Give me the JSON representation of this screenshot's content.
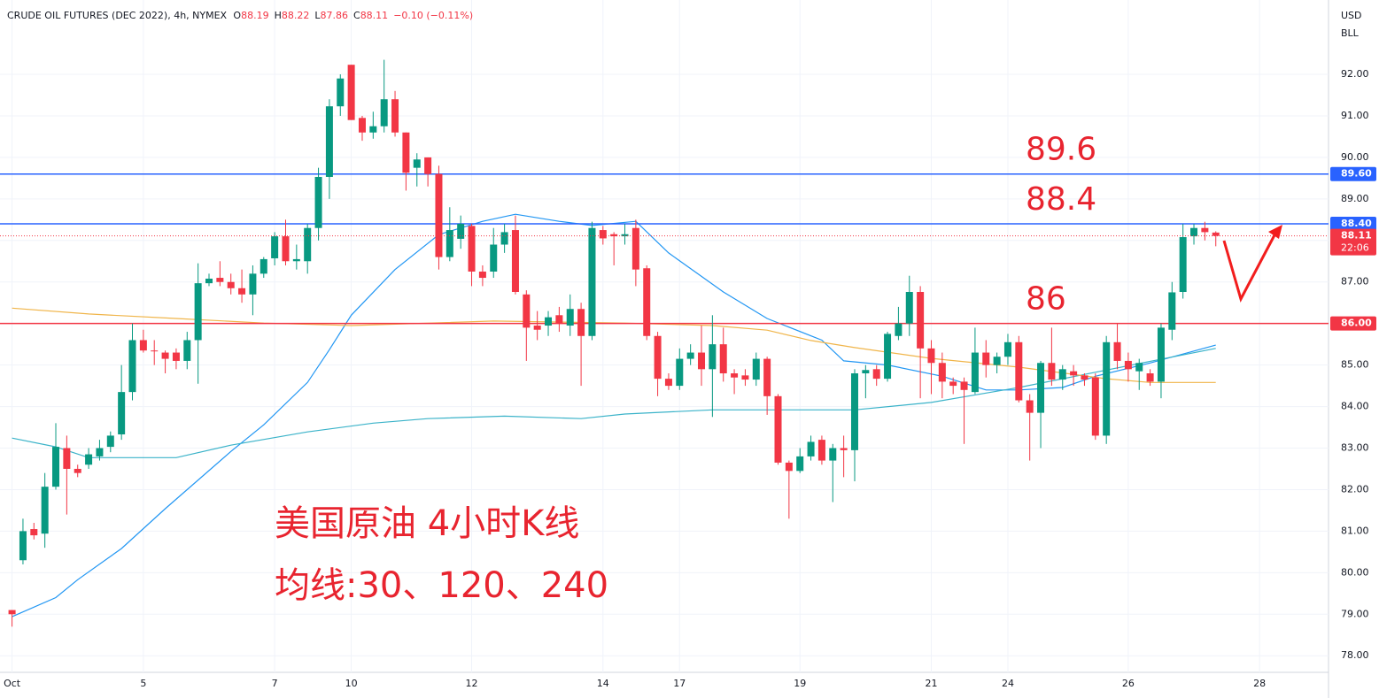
{
  "header": {
    "symbol": "CRUDE OIL FUTURES (DEC 2022), 4h, NYMEX",
    "ohlc": [
      {
        "key": "O",
        "value": "88.19"
      },
      {
        "key": "H",
        "value": "88.22"
      },
      {
        "key": "L",
        "value": "87.86"
      },
      {
        "key": "C",
        "value": "88.11"
      }
    ],
    "change": "−0.10 (−0.11%)",
    "currency": "USD",
    "unit": "BLL"
  },
  "chart_data": {
    "type": "candlestick",
    "up_color": "#089981",
    "down_color": "#f23645",
    "grid": true,
    "x": [
      0,
      1,
      2,
      3,
      4,
      5,
      6,
      7,
      8,
      9,
      10,
      11,
      12,
      13,
      14,
      15,
      16,
      17,
      18,
      19,
      20,
      21,
      22,
      23,
      24,
      25,
      26,
      27,
      28,
      29,
      30,
      31,
      32,
      33,
      34,
      35,
      36,
      37,
      38,
      39,
      40,
      41,
      42,
      43,
      44,
      45,
      46,
      47,
      48,
      49,
      50,
      51,
      52,
      53,
      54,
      55,
      56,
      57,
      58,
      59,
      60,
      61,
      62,
      63,
      64,
      65,
      66,
      67,
      68,
      69,
      70,
      71,
      72,
      73,
      74,
      75,
      76,
      77,
      78,
      79,
      80,
      81,
      82,
      83,
      84,
      85,
      86,
      87,
      88,
      89,
      90,
      91,
      92,
      93,
      94,
      95,
      96,
      97,
      98,
      99,
      100,
      101,
      102,
      103,
      104,
      105,
      106,
      107,
      108,
      109,
      110
    ],
    "open": [
      79.1,
      80.3,
      81.05,
      80.94,
      82.07,
      83.0,
      82.5,
      82.6,
      82.8,
      83.03,
      83.33,
      84.35,
      85.6,
      85.35,
      85.3,
      85.3,
      85.1,
      85.6,
      86.97,
      87.1,
      87.0,
      86.85,
      86.7,
      87.2,
      87.57,
      88.1,
      87.5,
      87.5,
      88.3,
      89.53,
      91.23,
      92.23,
      90.95,
      90.6,
      90.75,
      91.4,
      90.6,
      89.75,
      90.0,
      89.6,
      87.6,
      88.04,
      88.35,
      87.25,
      87.25,
      87.9,
      88.25,
      86.7,
      85.95,
      85.95,
      86.2,
      85.95,
      86.35,
      85.7,
      88.25,
      88.15,
      88.1,
      88.3,
      87.33,
      85.7,
      84.67,
      84.5,
      85.15,
      85.3,
      84.9,
      85.5,
      84.8,
      84.75,
      84.65,
      85.15,
      84.25,
      82.65,
      82.45,
      82.8,
      83.2,
      82.7,
      83.0,
      82.95,
      84.8,
      84.9,
      84.67,
      85.7,
      86.0,
      86.76,
      85.4,
      85.05,
      84.6,
      84.6,
      84.35,
      85.3,
      85.0,
      85.2,
      85.55,
      84.15,
      83.85,
      85.05,
      84.65,
      84.85,
      84.75,
      84.7,
      83.3,
      85.55,
      85.1,
      84.85,
      84.8,
      84.6,
      85.85,
      86.76,
      88.1,
      88.3,
      88.19
    ],
    "high": [
      79.1,
      81.3,
      81.2,
      82.4,
      83.6,
      83.3,
      82.6,
      83.0,
      83.2,
      83.4,
      85.0,
      86.0,
      85.85,
      85.6,
      85.35,
      85.4,
      85.8,
      87.45,
      87.2,
      87.5,
      87.2,
      87.3,
      87.4,
      87.6,
      88.2,
      88.5,
      87.9,
      88.4,
      89.75,
      91.4,
      92.0,
      92.23,
      91.0,
      91.1,
      92.35,
      91.6,
      90.6,
      90.1,
      90.0,
      89.8,
      88.8,
      88.6,
      88.4,
      87.4,
      88.3,
      88.4,
      88.6,
      86.8,
      86.3,
      86.3,
      86.4,
      86.7,
      86.5,
      88.45,
      88.35,
      88.2,
      88.4,
      88.5,
      87.4,
      85.8,
      84.8,
      85.4,
      85.5,
      85.95,
      86.2,
      85.9,
      84.9,
      84.9,
      85.3,
      85.2,
      84.3,
      82.7,
      83.0,
      83.3,
      83.3,
      83.1,
      83.3,
      84.9,
      85.0,
      85.0,
      85.8,
      86.4,
      87.15,
      86.9,
      85.6,
      85.3,
      84.7,
      84.7,
      85.9,
      85.6,
      85.3,
      85.75,
      85.7,
      84.3,
      85.1,
      85.9,
      85.0,
      85.0,
      84.8,
      84.8,
      85.7,
      86.0,
      85.3,
      85.15,
      84.9,
      86.0,
      87.0,
      88.4,
      88.4,
      88.45,
      88.22
    ],
    "low": [
      78.7,
      80.2,
      80.8,
      80.6,
      82.0,
      81.4,
      82.3,
      82.5,
      82.7,
      82.9,
      83.2,
      84.15,
      85.3,
      85.0,
      84.8,
      84.9,
      84.9,
      84.55,
      86.9,
      86.9,
      86.7,
      86.5,
      86.2,
      87.1,
      87.4,
      87.4,
      87.3,
      87.2,
      88.0,
      89.0,
      91.0,
      90.9,
      90.4,
      90.45,
      90.6,
      90.5,
      89.2,
      89.3,
      89.3,
      87.3,
      87.5,
      87.8,
      86.9,
      86.9,
      87.1,
      87.7,
      86.7,
      85.1,
      85.6,
      85.7,
      85.8,
      85.7,
      84.5,
      85.6,
      87.9,
      87.4,
      87.9,
      86.9,
      85.6,
      84.25,
      84.4,
      84.4,
      85.0,
      84.5,
      83.75,
      84.6,
      84.3,
      84.5,
      84.5,
      83.8,
      82.6,
      81.3,
      82.4,
      82.7,
      82.6,
      81.7,
      82.3,
      82.2,
      84.2,
      84.5,
      84.6,
      85.6,
      85.7,
      84.2,
      84.3,
      84.2,
      84.3,
      83.1,
      84.3,
      84.7,
      84.8,
      85.0,
      84.1,
      82.7,
      83.0,
      84.5,
      84.4,
      84.5,
      84.5,
      83.2,
      83.1,
      84.9,
      84.6,
      84.4,
      84.5,
      84.2,
      85.6,
      86.6,
      87.9,
      88.0,
      87.86
    ],
    "close": [
      79.0,
      81.0,
      80.9,
      82.07,
      83.03,
      82.5,
      82.4,
      82.85,
      83.0,
      83.3,
      84.35,
      85.6,
      85.35,
      85.33,
      85.15,
      85.1,
      85.6,
      86.97,
      87.08,
      87.0,
      86.85,
      86.7,
      87.2,
      87.55,
      88.1,
      87.5,
      87.55,
      88.3,
      89.53,
      91.23,
      91.9,
      90.9,
      90.6,
      90.75,
      91.4,
      90.6,
      89.63,
      89.95,
      89.6,
      87.6,
      88.25,
      88.4,
      87.25,
      87.1,
      87.9,
      88.2,
      86.76,
      85.9,
      85.85,
      86.15,
      86.0,
      86.35,
      85.7,
      88.3,
      88.05,
      88.1,
      88.15,
      87.3,
      85.7,
      84.67,
      84.5,
      85.15,
      85.3,
      84.9,
      85.5,
      84.8,
      84.7,
      84.65,
      85.15,
      84.25,
      82.65,
      82.45,
      82.8,
      83.15,
      82.7,
      83.0,
      82.95,
      84.8,
      84.88,
      84.67,
      85.75,
      86.0,
      86.76,
      85.4,
      85.05,
      84.6,
      84.5,
      84.4,
      85.3,
      85.0,
      85.2,
      85.55,
      84.15,
      83.85,
      85.05,
      84.65,
      84.9,
      84.75,
      84.65,
      83.3,
      85.55,
      85.1,
      84.9,
      85.05,
      84.6,
      85.9,
      86.75,
      88.08,
      88.3,
      88.2,
      88.11
    ],
    "lines": [
      {
        "color": "#2196f3",
        "x": [
          0,
          4,
          6,
          10,
          14,
          20,
          23,
          27,
          29,
          31,
          35,
          39,
          43,
          46,
          50,
          53,
          57,
          60,
          65,
          69,
          74,
          76,
          80,
          85,
          89,
          92,
          96,
          99,
          104,
          110
        ],
        "values": [
          78.94,
          79.4,
          79.83,
          80.58,
          81.54,
          82.92,
          83.56,
          84.58,
          85.37,
          86.2,
          87.3,
          88.14,
          88.46,
          88.63,
          88.46,
          88.36,
          88.46,
          87.7,
          86.76,
          86.12,
          85.6,
          85.1,
          85.0,
          84.73,
          84.4,
          84.4,
          84.46,
          84.73,
          85.05,
          85.48
        ]
      },
      {
        "color": "#3bb3c9",
        "x": [
          0,
          4,
          7,
          15,
          20,
          27,
          33,
          38,
          45,
          52,
          56,
          64,
          72,
          77,
          84,
          92,
          100,
          110
        ],
        "values": [
          83.24,
          83.03,
          82.77,
          82.77,
          83.07,
          83.39,
          83.6,
          83.71,
          83.77,
          83.71,
          83.82,
          83.92,
          83.92,
          83.92,
          84.1,
          84.46,
          84.88,
          85.4
        ]
      },
      {
        "color": "#f0b54a",
        "x": [
          0,
          7,
          15,
          23,
          31,
          44,
          56,
          64,
          69,
          73,
          77,
          84,
          92,
          100,
          104,
          110
        ],
        "values": [
          86.37,
          86.23,
          86.12,
          86.01,
          85.95,
          86.06,
          86.01,
          85.95,
          85.84,
          85.59,
          85.42,
          85.16,
          84.95,
          84.67,
          84.58,
          84.58
        ]
      }
    ],
    "levels": [
      {
        "value": 89.6,
        "label": "89.60",
        "annotation": "89.6",
        "color": "#2962ff"
      },
      {
        "value": 88.4,
        "label": "88.40",
        "annotation": "88.4",
        "color": "#2962ff"
      },
      {
        "value": 86.0,
        "label": "86.00",
        "annotation": "86",
        "color": "#f23645"
      }
    ],
    "last_price": {
      "value": 88.11,
      "label": "88.11",
      "countdown": "22:06",
      "color": "#f23645"
    },
    "notes": [
      "美国原油 4小时K线",
      "均线:30、120、240"
    ],
    "xlim": [
      -1.1,
      120.3
    ],
    "ylim": [
      77.6,
      93.79
    ],
    "xticks": [
      {
        "value": 0,
        "label": "Oct"
      },
      {
        "value": 12,
        "label": "5"
      },
      {
        "value": 24,
        "label": "7"
      },
      {
        "value": 31,
        "label": "10"
      },
      {
        "value": 42,
        "label": "12"
      },
      {
        "value": 54,
        "label": "14"
      },
      {
        "value": 61,
        "label": "17"
      },
      {
        "value": 72,
        "label": "19"
      },
      {
        "value": 84,
        "label": "21"
      },
      {
        "value": 91,
        "label": "24"
      },
      {
        "value": 102,
        "label": "26"
      },
      {
        "value": 114,
        "label": "28"
      }
    ],
    "yticks": [
      {
        "value": 78,
        "label": "78.00"
      },
      {
        "value": 79,
        "label": "79.00"
      },
      {
        "value": 80,
        "label": "80.00"
      },
      {
        "value": 81,
        "label": "81.00"
      },
      {
        "value": 82,
        "label": "82.00"
      },
      {
        "value": 83,
        "label": "83.00"
      },
      {
        "value": 84,
        "label": "84.00"
      },
      {
        "value": 85,
        "label": "85.00"
      },
      {
        "value": 86,
        "label": "86.00"
      },
      {
        "value": 87,
        "label": "87.00"
      },
      {
        "value": 88,
        "label": "88.00"
      },
      {
        "value": 89,
        "label": "89.00"
      },
      {
        "value": 90,
        "label": "90.00"
      },
      {
        "value": 91,
        "label": "91.00"
      },
      {
        "value": 92,
        "label": "92.00"
      }
    ]
  }
}
